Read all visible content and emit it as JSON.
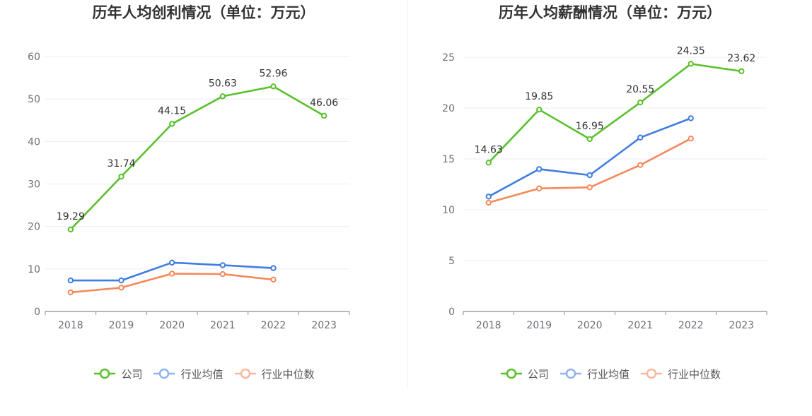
{
  "chart_data": [
    {
      "type": "line",
      "title": "历年人均创利情况（单位：万元）",
      "categories": [
        "2018",
        "2019",
        "2020",
        "2021",
        "2022",
        "2023"
      ],
      "ylim": [
        0,
        60
      ],
      "yticks": [
        0,
        10,
        20,
        30,
        40,
        50,
        60
      ],
      "grid": true,
      "legend_position": "bottom",
      "series": [
        {
          "name": "公司",
          "color": "#5ac02c",
          "values": [
            19.29,
            31.74,
            44.15,
            50.63,
            52.96,
            46.06
          ],
          "labels": [
            "19.29",
            "31.74",
            "44.15",
            "50.63",
            "52.96",
            "46.06"
          ]
        },
        {
          "name": "行业均值",
          "color": "#3f7ee0",
          "values": [
            7.3,
            7.3,
            11.5,
            10.9,
            10.2,
            null
          ],
          "labels": null
        },
        {
          "name": "行业中位数",
          "color": "#f5895a",
          "values": [
            4.5,
            5.6,
            8.9,
            8.8,
            7.5,
            null
          ],
          "labels": null
        }
      ]
    },
    {
      "type": "line",
      "title": "历年人均薪酬情况（单位：万元）",
      "categories": [
        "2018",
        "2019",
        "2020",
        "2021",
        "2022",
        "2023"
      ],
      "ylim": [
        0,
        25
      ],
      "yticks": [
        0,
        5,
        10,
        15,
        20,
        25
      ],
      "grid": true,
      "legend_position": "bottom",
      "series": [
        {
          "name": "公司",
          "color": "#5ac02c",
          "values": [
            14.63,
            19.85,
            16.95,
            20.55,
            24.35,
            23.62
          ],
          "labels": [
            "14.63",
            "19.85",
            "16.95",
            "20.55",
            "24.35",
            "23.62"
          ]
        },
        {
          "name": "行业均值",
          "color": "#3f7ee0",
          "values": [
            11.3,
            14.0,
            13.4,
            17.1,
            19.0,
            null
          ],
          "labels": null
        },
        {
          "name": "行业中位数",
          "color": "#f5895a",
          "values": [
            10.7,
            12.1,
            12.2,
            14.4,
            17.0,
            null
          ],
          "labels": null
        }
      ]
    }
  ],
  "legend": {
    "items": [
      {
        "label": "公司",
        "color": "#5ac02c"
      },
      {
        "label": "行业均值",
        "color": "#3f7ee0"
      },
      {
        "label": "行业中位数",
        "color": "#f5895a"
      }
    ]
  }
}
